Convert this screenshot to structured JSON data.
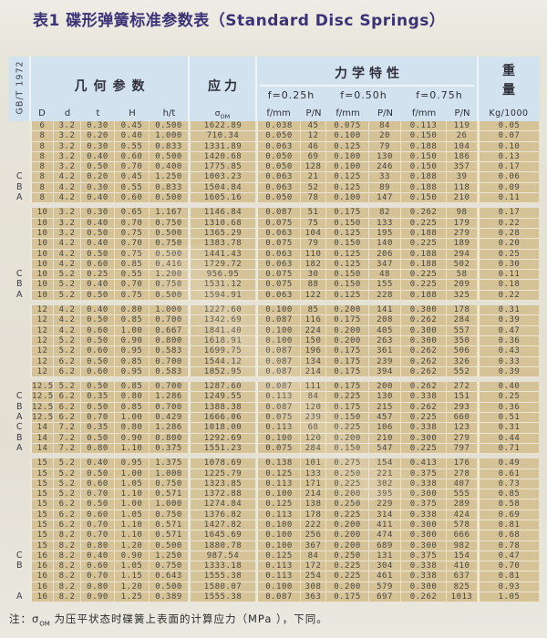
{
  "title": "表1 碟形弹簧标准参数表（Standard Disc Springs）",
  "colors": {
    "title": "#3b3277",
    "header_bg": "#d2e2ef",
    "row_bg": "#d5c296",
    "page_bg": "#e5e1d6"
  },
  "table": {
    "standard_label": "GB/T 1972",
    "header": {
      "geometry": "几何参数",
      "stress": "应力",
      "mechanical": "力学特性",
      "weight_top": "重",
      "weight_bottom": "量",
      "f025": "f=0.25h",
      "f050": "f=0.50h",
      "f075": "f=0.75h",
      "cols": [
        "D",
        "d",
        "t",
        "H",
        "h/t",
        "σOM",
        "f/mm",
        "P/N",
        "f/mm",
        "P/N",
        "f/mm",
        "P/N",
        "Kg/1000"
      ]
    },
    "groups": [
      {
        "rows": [
          [
            "",
            "6",
            "3.2",
            "0.30",
            "0.45",
            "0.500",
            "1622.89",
            "0.038",
            "45",
            "0.075",
            "84",
            "0.113",
            "119",
            "0.05"
          ],
          [
            "",
            "8",
            "3.2",
            "0.20",
            "0.40",
            "1.000",
            "710.34",
            "0.050",
            "12",
            "0.100",
            "20",
            "0.150",
            "26",
            "0.07"
          ],
          [
            "",
            "8",
            "3.2",
            "0.30",
            "0.55",
            "0.833",
            "1331.89",
            "0.063",
            "46",
            "0.125",
            "79",
            "0.188",
            "104",
            "0.10"
          ],
          [
            "",
            "8",
            "3.2",
            "0.40",
            "0.60",
            "0.500",
            "1420.68",
            "0.050",
            "69",
            "0.100",
            "130",
            "0.150",
            "186",
            "0.13"
          ],
          [
            "",
            "8",
            "3.2",
            "0.50",
            "0.70",
            "0.400",
            "1775.85",
            "0.050",
            "128",
            "0.100",
            "246",
            "0.150",
            "357",
            "0.17"
          ],
          [
            "C",
            "8",
            "4.2",
            "0.20",
            "0.45",
            "1.250",
            "1003.23",
            "0.063",
            "21",
            "0.125",
            "33",
            "0.188",
            "39",
            "0.06"
          ],
          [
            "B",
            "8",
            "4.2",
            "0.30",
            "0.55",
            "0.833",
            "1504.84",
            "0.063",
            "52",
            "0.125",
            "89",
            "0.188",
            "118",
            "0.09"
          ],
          [
            "A",
            "8",
            "4.2",
            "0.40",
            "0.60",
            "0.500",
            "1605.16",
            "0.050",
            "78",
            "0.100",
            "147",
            "0.150",
            "210",
            "0.11"
          ]
        ]
      },
      {
        "rows": [
          [
            "",
            "10",
            "3.2",
            "0.30",
            "0.65",
            "1.167",
            "1146.84",
            "0.087",
            "51",
            "0.175",
            "82",
            "0.262",
            "98",
            "0.17"
          ],
          [
            "",
            "10",
            "3.2",
            "0.40",
            "0.70",
            "0.750",
            "1310.68",
            "0.075",
            "75",
            "0.150",
            "133",
            "0.225",
            "179",
            "0.22"
          ],
          [
            "",
            "10",
            "3.2",
            "0.50",
            "0.75",
            "0.500",
            "1365.29",
            "0.063",
            "104",
            "0.125",
            "195",
            "0.188",
            "279",
            "0.28"
          ],
          [
            "",
            "10",
            "4.2",
            "0.40",
            "0.70",
            "0.750",
            "1383.78",
            "0.075",
            "79",
            "0.150",
            "140",
            "0.225",
            "189",
            "0.20"
          ],
          [
            "",
            "10",
            "4.2",
            "0.50",
            "0.75",
            "0.500",
            "1441.43",
            "0.063",
            "110",
            "0.125",
            "206",
            "0.188",
            "294",
            "0.25"
          ],
          [
            "",
            "10",
            "4.2",
            "0.60",
            "0.85",
            "0.416",
            "1729.72",
            "0.063",
            "182",
            "0.125",
            "347",
            "0.188",
            "502",
            "0.30"
          ],
          [
            "C",
            "10",
            "5.2",
            "0.25",
            "0.55",
            "1.200",
            "956.95",
            "0.075",
            "30",
            "0.150",
            "48",
            "0.225",
            "58",
            "0.11"
          ],
          [
            "B",
            "10",
            "5.2",
            "0.40",
            "0.70",
            "0.750",
            "1531.12",
            "0.075",
            "88",
            "0.150",
            "155",
            "0.225",
            "209",
            "0.18"
          ],
          [
            "A",
            "10",
            "5.2",
            "0.50",
            "0.75",
            "0.500",
            "1594.91",
            "0.063",
            "122",
            "0.125",
            "228",
            "0.188",
            "325",
            "0.22"
          ]
        ]
      },
      {
        "rows": [
          [
            "",
            "12",
            "4.2",
            "0.40",
            "0.80",
            "1.000",
            "1227.60",
            "0.100",
            "85",
            "0.200",
            "141",
            "0.300",
            "178",
            "0.31"
          ],
          [
            "",
            "12",
            "4.2",
            "0.50",
            "0.85",
            "0.700",
            "1342.69",
            "0.087",
            "116",
            "0.175",
            "208",
            "0.262",
            "284",
            "0.39"
          ],
          [
            "",
            "12",
            "4.2",
            "0.60",
            "1.00",
            "0.667",
            "1841.40",
            "0.100",
            "224",
            "0.200",
            "405",
            "0.300",
            "557",
            "0.47"
          ],
          [
            "",
            "12",
            "5.2",
            "0.50",
            "0.90",
            "0.800",
            "1618.91",
            "0.100",
            "150",
            "0.200",
            "263",
            "0.300",
            "350",
            "0.36"
          ],
          [
            "",
            "12",
            "5.2",
            "0.60",
            "0.95",
            "0.583",
            "1699.75",
            "0.087",
            "196",
            "0.175",
            "361",
            "0.262",
            "506",
            "0.43"
          ],
          [
            "",
            "12",
            "6.2",
            "0.50",
            "0.85",
            "0.700",
            "1544.12",
            "0.087",
            "134",
            "0.175",
            "239",
            "0.262",
            "326",
            "0.33"
          ],
          [
            "",
            "12",
            "6.2",
            "0.60",
            "0.95",
            "0.583",
            "1852.95",
            "0.087",
            "214",
            "0.175",
            "394",
            "0.262",
            "552",
            "0.39"
          ]
        ]
      },
      {
        "rows": [
          [
            "",
            "12.5",
            "5.2",
            "0.50",
            "0.85",
            "0.700",
            "1287.60",
            "0.087",
            "111",
            "0.175",
            "200",
            "0.262",
            "272",
            "0.40"
          ],
          [
            "C",
            "12.5",
            "6.2",
            "0.35",
            "0.80",
            "1.286",
            "1249.55",
            "0.113",
            "84",
            "0.225",
            "130",
            "0.338",
            "151",
            "0.25"
          ],
          [
            "B",
            "12.5",
            "6.2",
            "0.50",
            "0.85",
            "0.700",
            "1388.38",
            "0.087",
            "120",
            "0.175",
            "215",
            "0.262",
            "293",
            "0.36"
          ],
          [
            "A",
            "12.5",
            "6.2",
            "0.70",
            "1.00",
            "0.429",
            "1666.06",
            "0.075",
            "239",
            "0.150",
            "457",
            "0.225",
            "660",
            "0.51"
          ],
          [
            "C",
            "14",
            "7.2",
            "0.35",
            "0.80",
            "1.286",
            "1018.00",
            "0.113",
            "68",
            "0.225",
            "106",
            "0.338",
            "123",
            "0.31"
          ],
          [
            "B",
            "14",
            "7.2",
            "0.50",
            "0.90",
            "0.800",
            "1292.69",
            "0.100",
            "120",
            "0.200",
            "210",
            "0.300",
            "279",
            "0.44"
          ],
          [
            "A",
            "14",
            "7.2",
            "0.80",
            "1.10",
            "0.375",
            "1551.23",
            "0.075",
            "284",
            "0.150",
            "547",
            "0.225",
            "797",
            "0.71"
          ]
        ]
      },
      {
        "rows": [
          [
            "",
            "15",
            "5.2",
            "0.40",
            "0.95",
            "1.375",
            "1078.69",
            "0.138",
            "101",
            "0.275",
            "154",
            "0.413",
            "176",
            "0.49"
          ],
          [
            "",
            "15",
            "5.2",
            "0.50",
            "1.00",
            "1.000",
            "1225.79",
            "0.125",
            "133",
            "0.250",
            "221",
            "0.375",
            "278",
            "0.61"
          ],
          [
            "",
            "15",
            "5.2",
            "0.60",
            "1.05",
            "0.750",
            "1323.85",
            "0.113",
            "171",
            "0.225",
            "302",
            "0.338",
            "407",
            "0.73"
          ],
          [
            "",
            "15",
            "5.2",
            "0.70",
            "1.10",
            "0.571",
            "1372.88",
            "0.100",
            "214",
            "0.200",
            "395",
            "0.300",
            "555",
            "0.85"
          ],
          [
            "",
            "15",
            "6.2",
            "0.50",
            "1.00",
            "1.000",
            "1274.84",
            "0.125",
            "138",
            "0.250",
            "229",
            "0.375",
            "289",
            "0.58"
          ],
          [
            "",
            "15",
            "6.2",
            "0.60",
            "1.05",
            "0.750",
            "1376.82",
            "0.113",
            "178",
            "0.225",
            "314",
            "0.338",
            "424",
            "0.69"
          ],
          [
            "",
            "15",
            "6.2",
            "0.70",
            "1.10",
            "0.571",
            "1427.82",
            "0.100",
            "222",
            "0.200",
            "411",
            "0.300",
            "578",
            "0.81"
          ],
          [
            "",
            "15",
            "8.2",
            "0.70",
            "1.10",
            "0.571",
            "1645.69",
            "0.100",
            "256",
            "0.200",
            "474",
            "0.300",
            "666",
            "0.68"
          ],
          [
            "",
            "15",
            "8.2",
            "0.80",
            "1.20",
            "0.500",
            "1880.78",
            "0.100",
            "367",
            "0.200",
            "689",
            "0.300",
            "982",
            "0.78"
          ],
          [
            "C",
            "16",
            "8.2",
            "0.40",
            "0.90",
            "1.250",
            "987.54",
            "0.125",
            "84",
            "0.250",
            "131",
            "0.375",
            "154",
            "0.47"
          ],
          [
            "B",
            "16",
            "8.2",
            "0.60",
            "1.05",
            "0.750",
            "1333.18",
            "0.113",
            "172",
            "0.225",
            "304",
            "0.338",
            "410",
            "0.70"
          ],
          [
            "",
            "16",
            "8.2",
            "0.70",
            "1.15",
            "0.643",
            "1555.38",
            "0.113",
            "254",
            "0.225",
            "461",
            "0.338",
            "637",
            "0.81"
          ],
          [
            "",
            "16",
            "8.2",
            "0.80",
            "1.20",
            "0.500",
            "1580.07",
            "0.100",
            "308",
            "0.200",
            "579",
            "0.300",
            "825",
            "0.93"
          ],
          [
            "A",
            "16",
            "8.2",
            "0.90",
            "1.25",
            "0.389",
            "1555.38",
            "0.087",
            "363",
            "0.175",
            "697",
            "0.262",
            "1013",
            "1.05"
          ]
        ]
      }
    ]
  },
  "note": {
    "prefix": "注：",
    "sigma": "σ",
    "sigma_sub": "OM",
    "text": "为压平状态时碟簧上表面的计算应力（MPa ），下同。"
  }
}
